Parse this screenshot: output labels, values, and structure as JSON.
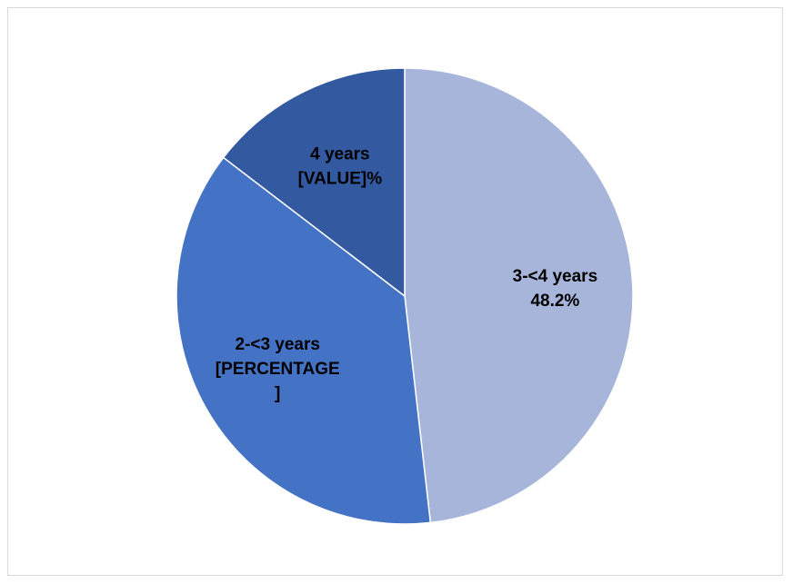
{
  "chart_data": {
    "type": "pie",
    "title": "",
    "categories": [
      "3-<4 years",
      "2-<3 years",
      "4 years"
    ],
    "values": [
      48.2,
      37.2,
      14.6
    ],
    "value_unit": "%",
    "colors": [
      "#A7B5DB",
      "#4472C4",
      "#335AA1"
    ],
    "start_angle_deg": 0,
    "direction": "clockwise",
    "legend": "none",
    "data_labels": [
      {
        "category": "3-<4 years",
        "lines": [
          "3-<4 years",
          "48.2%"
        ]
      },
      {
        "category": "2-<3 years",
        "lines": [
          "2-<3 years",
          "[PERCENTAGE",
          "]"
        ]
      },
      {
        "category": "4 years",
        "lines": [
          "4 years",
          "[VALUE]%"
        ]
      }
    ]
  }
}
